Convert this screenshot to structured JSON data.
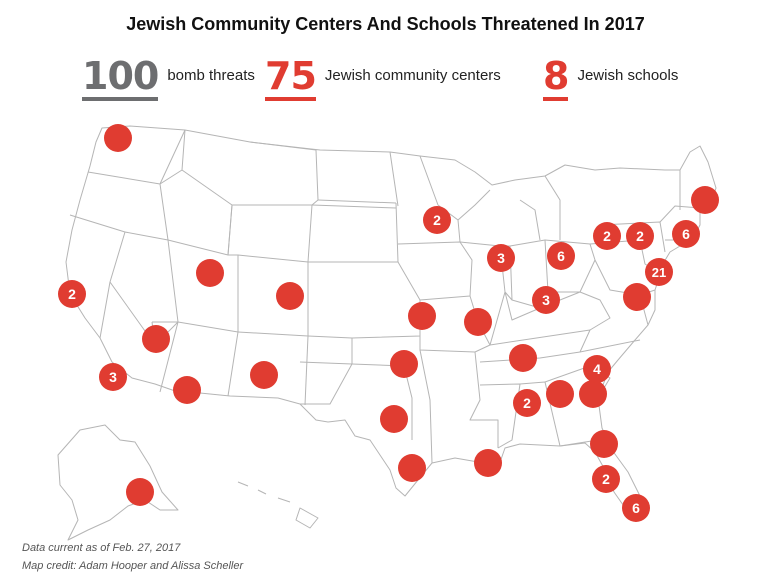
{
  "title": "Jewish Community Centers And Schools Threatened In 2017",
  "stats": [
    {
      "value": "100",
      "label": "bomb threats",
      "color": "#6d6e70"
    },
    {
      "value": "75",
      "label": "Jewish community centers",
      "color": "#e03c31"
    },
    {
      "value": "8",
      "label": "Jewish schools",
      "color": "#e03c31"
    }
  ],
  "marker_color": "#e03c31",
  "markers": [
    {
      "region": "Washington",
      "count": ""
    },
    {
      "region": "Northern California",
      "count": "2"
    },
    {
      "region": "Southern California",
      "count": "3"
    },
    {
      "region": "Nevada",
      "count": ""
    },
    {
      "region": "Utah",
      "count": ""
    },
    {
      "region": "Arizona",
      "count": ""
    },
    {
      "region": "Colorado",
      "count": ""
    },
    {
      "region": "New Mexico",
      "count": ""
    },
    {
      "region": "Minnesota",
      "count": "2"
    },
    {
      "region": "Kansas City",
      "count": ""
    },
    {
      "region": "Oklahoma",
      "count": ""
    },
    {
      "region": "Dallas",
      "count": ""
    },
    {
      "region": "Houston",
      "count": ""
    },
    {
      "region": "St. Louis",
      "count": ""
    },
    {
      "region": "Chicago",
      "count": "3"
    },
    {
      "region": "Michigan",
      "count": "6"
    },
    {
      "region": "Ohio",
      "count": "3"
    },
    {
      "region": "Tennessee",
      "count": ""
    },
    {
      "region": "New Orleans",
      "count": ""
    },
    {
      "region": "Alabama",
      "count": "2"
    },
    {
      "region": "Atlanta",
      "count": ""
    },
    {
      "region": "South Carolina",
      "count": ""
    },
    {
      "region": "North Carolina",
      "count": "4"
    },
    {
      "region": "Jacksonville",
      "count": ""
    },
    {
      "region": "Orlando",
      "count": "2"
    },
    {
      "region": "South Florida",
      "count": "6"
    },
    {
      "region": "Western New York",
      "count": "2"
    },
    {
      "region": "Upstate New York",
      "count": "2"
    },
    {
      "region": "Massachusetts",
      "count": "6"
    },
    {
      "region": "New Hampshire",
      "count": ""
    },
    {
      "region": "New York / New Jersey",
      "count": "21"
    },
    {
      "region": "Maryland / DC",
      "count": ""
    },
    {
      "region": "Alaska",
      "count": ""
    }
  ],
  "footer": {
    "note": "Data current as of Feb. 27, 2017",
    "credit": "Map credit: Adam Hooper and Alissa Scheller"
  }
}
